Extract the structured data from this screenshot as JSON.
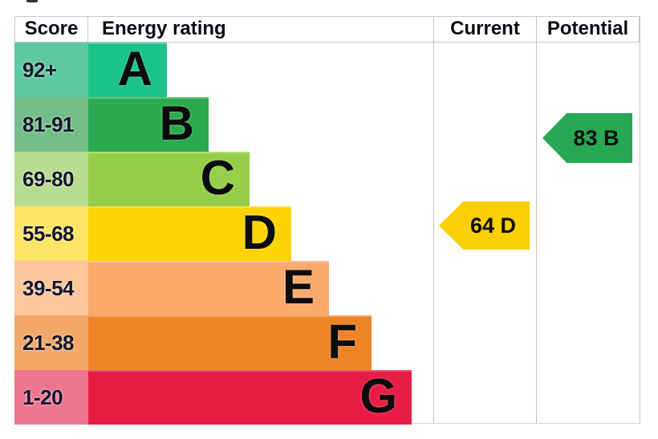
{
  "header": {
    "score": "Score",
    "energy_rating": "Energy rating",
    "current": "Current",
    "potential": "Potential"
  },
  "chart_data": {
    "type": "bar",
    "title": "Energy rating (EPC band chart)",
    "columns": [
      "Score",
      "Energy rating",
      "Current",
      "Potential"
    ],
    "bands": [
      {
        "letter": "A",
        "score_range": "92+",
        "color": "#1bc389",
        "cell_color": "#5ec9a0"
      },
      {
        "letter": "B",
        "score_range": "81-91",
        "color": "#2caa50",
        "cell_color": "#74bd88"
      },
      {
        "letter": "C",
        "score_range": "69-80",
        "color": "#95cf4a",
        "cell_color": "#b7dc8e"
      },
      {
        "letter": "D",
        "score_range": "55-68",
        "color": "#fcd404",
        "cell_color": "#fbe466"
      },
      {
        "letter": "E",
        "score_range": "39-54",
        "color": "#faaa6c",
        "cell_color": "#fbc79b"
      },
      {
        "letter": "F",
        "score_range": "21-38",
        "color": "#ee8428",
        "cell_color": "#f2a868"
      },
      {
        "letter": "G",
        "score_range": "1-20",
        "color": "#e81d46",
        "cell_color": "#ee7590"
      }
    ],
    "current": {
      "value": 64,
      "band": "D",
      "label": "64 D",
      "color": "#f9cf02"
    },
    "potential": {
      "value": 83,
      "band": "B",
      "label": "83 B",
      "color": "#27a954"
    },
    "layout": {
      "legend": "none",
      "grid": "column-dividers",
      "bar_direction": "horizontal"
    }
  }
}
